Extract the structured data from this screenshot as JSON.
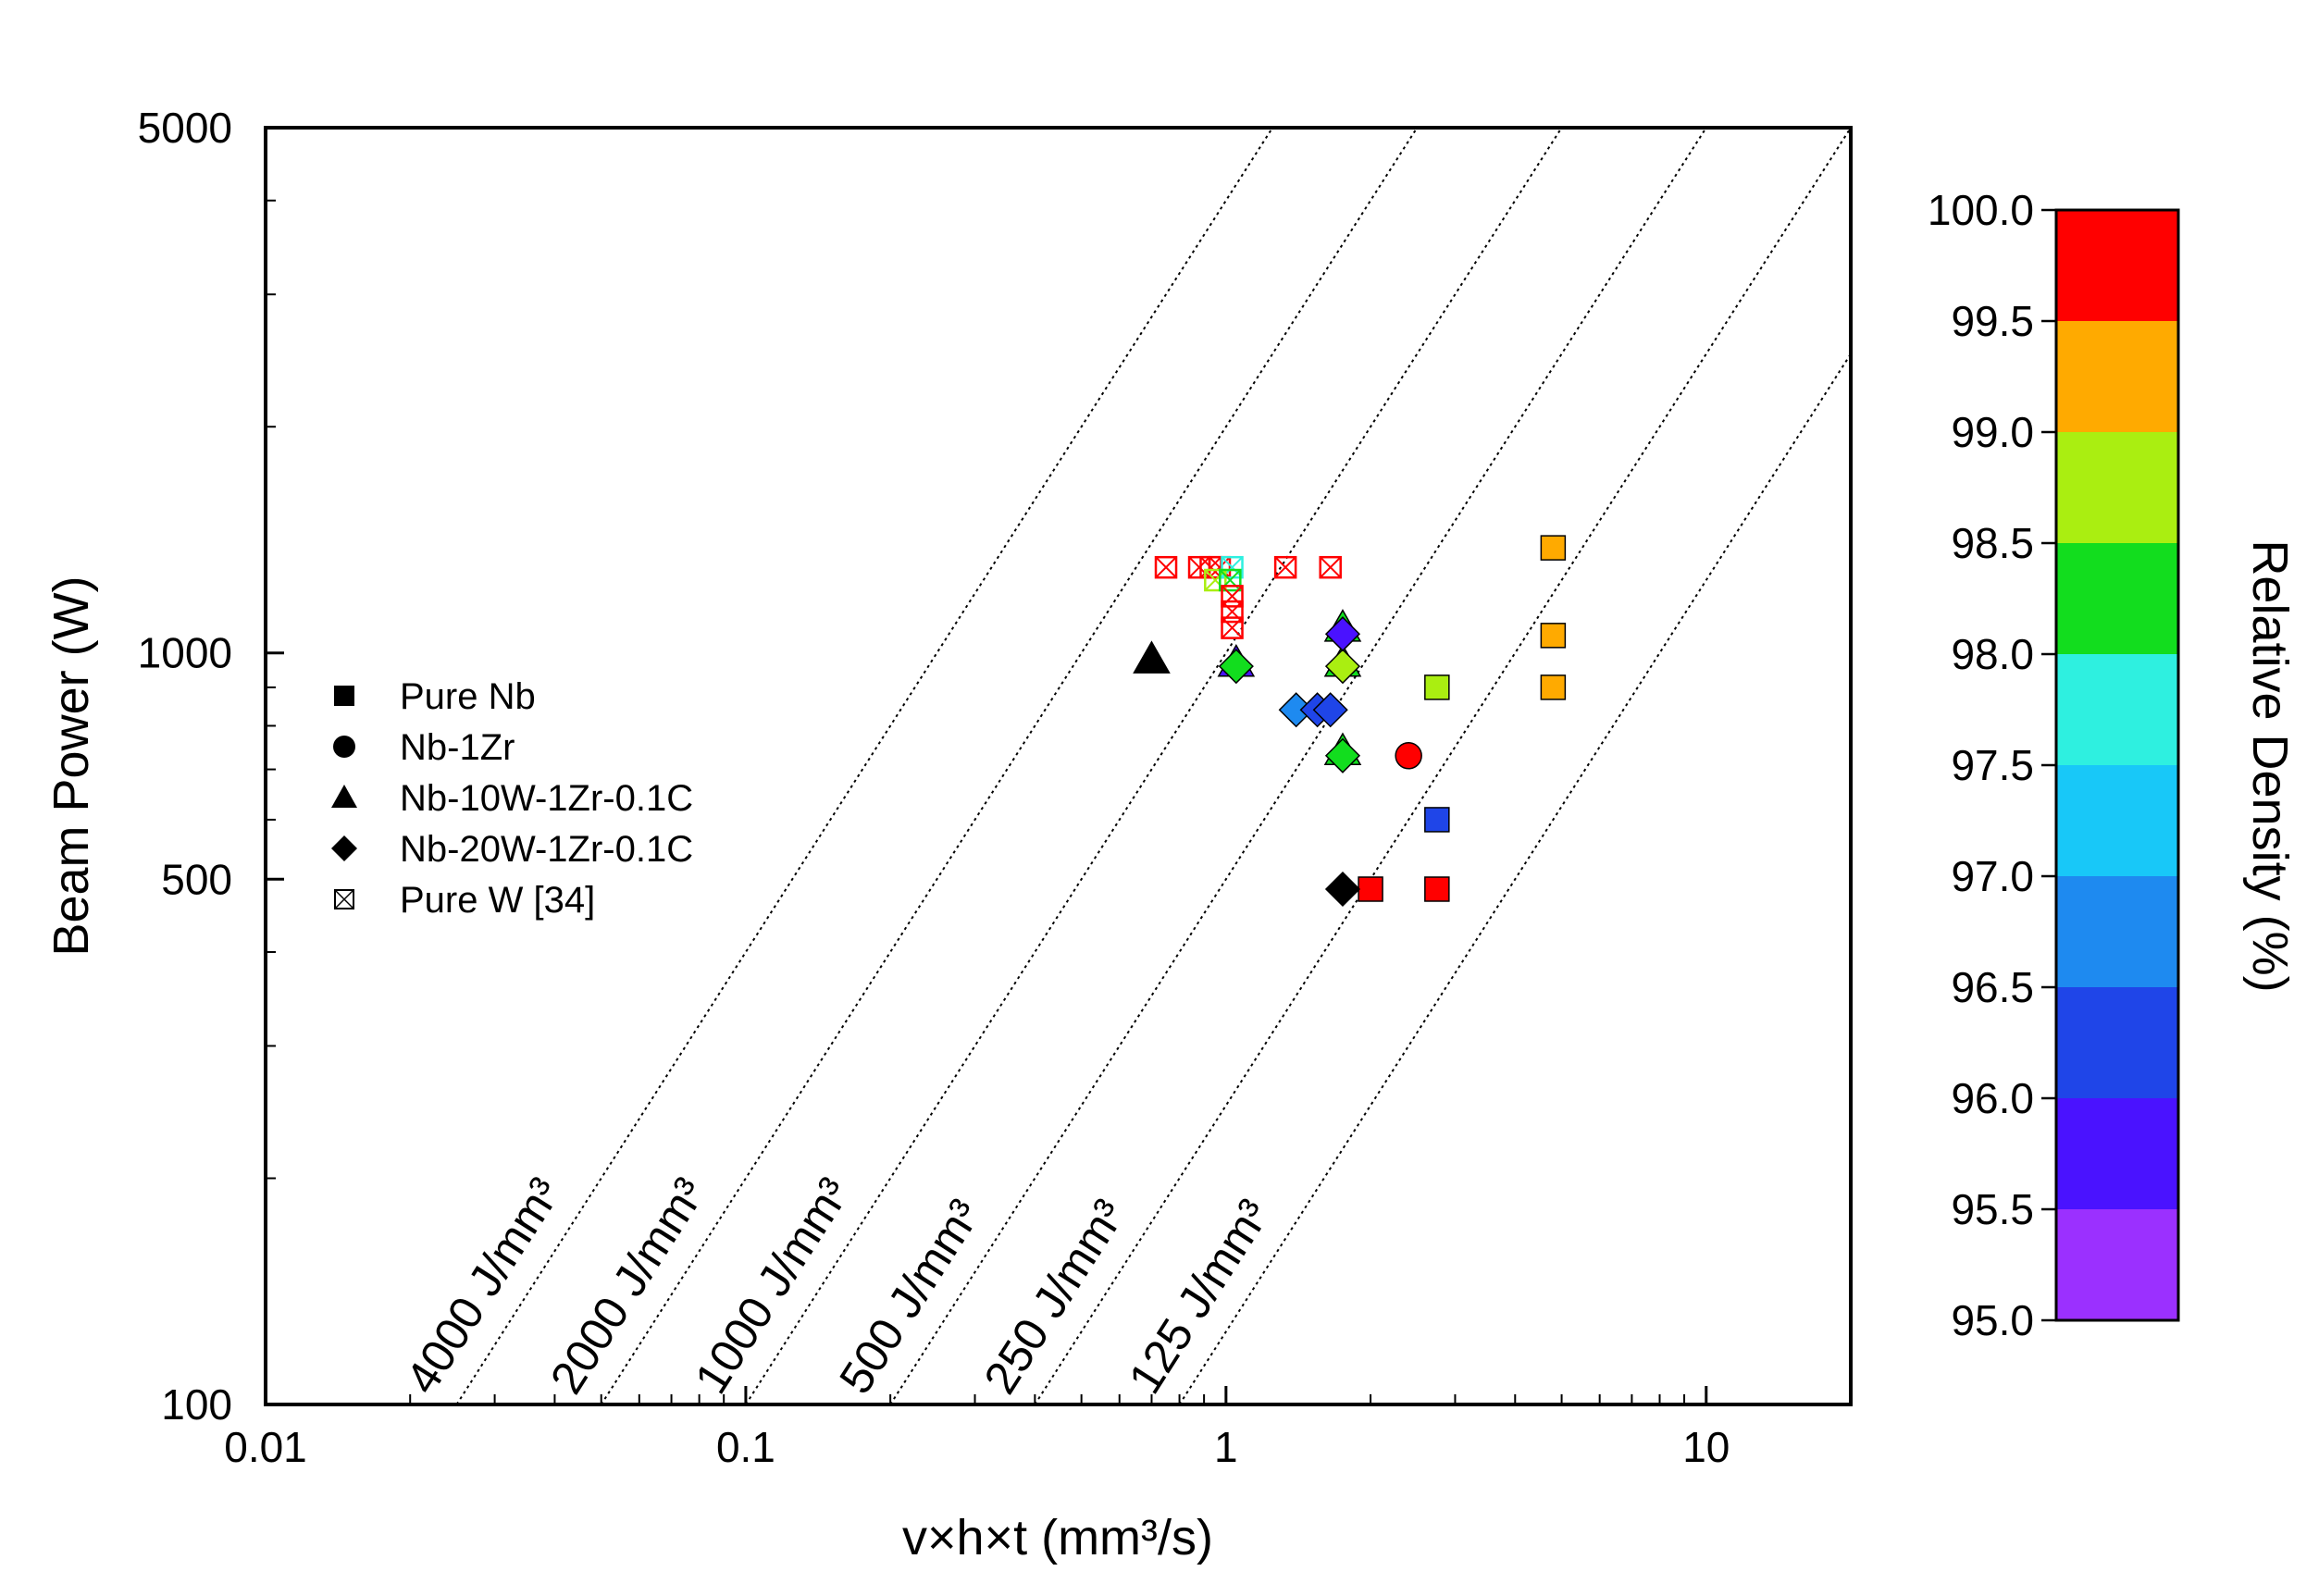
{
  "chart_data": {
    "type": "scatter",
    "xlabel": "v×h×t (mm³/s)",
    "ylabel": "Beam Power (W)",
    "x_scale": "log",
    "y_scale": "log",
    "xlim": [
      0.01,
      20
    ],
    "ylim": [
      100,
      5000
    ],
    "x_ticks": [
      {
        "value": 0.01,
        "label": "0.01"
      },
      {
        "value": 0.1,
        "label": "0.1"
      },
      {
        "value": 1,
        "label": "1"
      },
      {
        "value": 10,
        "label": "10"
      }
    ],
    "y_ticks": [
      {
        "value": 100,
        "label": "100"
      },
      {
        "value": 500,
        "label": "500"
      },
      {
        "value": 1000,
        "label": "1000"
      },
      {
        "value": 5000,
        "label": "5000"
      }
    ],
    "grid": false,
    "legend_position": "left-middle",
    "energy_density_lines": [
      {
        "value": 4000,
        "label": "4000 J/mm³"
      },
      {
        "value": 2000,
        "label": "2000 J/mm³"
      },
      {
        "value": 1000,
        "label": "1000 J/mm³"
      },
      {
        "value": 500,
        "label": "500 J/mm³"
      },
      {
        "value": 250,
        "label": "250 J/mm³"
      },
      {
        "value": 125,
        "label": "125 J/mm³"
      }
    ],
    "colorbar": {
      "title": "Relative Density (%)",
      "min": 95.0,
      "max": 100.0,
      "ticks": [
        "95.0",
        "95.5",
        "96.0",
        "96.5",
        "97.0",
        "97.5",
        "98.0",
        "98.5",
        "99.0",
        "99.5",
        "100.0"
      ],
      "colors": [
        "#9b30ff",
        "#4a12ff",
        "#1f45e8",
        "#1e8af0",
        "#18c8f8",
        "#2ef0e0",
        "#12dd1e",
        "#aaee11",
        "#ffaa00",
        "#ff5500",
        "#ff0000"
      ]
    },
    "series": [
      {
        "name": "Pure Nb",
        "marker": "square",
        "points": [
          {
            "x": 4.8,
            "y": 1380,
            "density": 99.2
          },
          {
            "x": 4.8,
            "y": 1055,
            "density": 99.2
          },
          {
            "x": 4.8,
            "y": 900,
            "density": 99.2
          },
          {
            "x": 2.75,
            "y": 900,
            "density": 98.7
          },
          {
            "x": 2.75,
            "y": 600,
            "density": 96.3
          },
          {
            "x": 2.75,
            "y": 485,
            "density": 99.8
          },
          {
            "x": 2.0,
            "y": 485,
            "density": 99.8
          }
        ]
      },
      {
        "name": "Nb-1Zr",
        "marker": "circle",
        "points": [
          {
            "x": 2.4,
            "y": 730,
            "density": 99.8
          }
        ]
      },
      {
        "name": "Nb-10W-1Zr-0.1C",
        "marker": "triangle",
        "points": [
          {
            "x": 0.7,
            "y": 980,
            "density": null
          },
          {
            "x": 1.75,
            "y": 1080,
            "density": 98.3
          },
          {
            "x": 1.75,
            "y": 970,
            "density": 98.3
          },
          {
            "x": 1.75,
            "y": 740,
            "density": 98.3
          },
          {
            "x": 1.05,
            "y": 970,
            "density": 95.6
          }
        ]
      },
      {
        "name": "Nb-20W-1Zr-0.1C",
        "marker": "diamond",
        "points": [
          {
            "x": 1.05,
            "y": 960,
            "density": 98.3
          },
          {
            "x": 1.75,
            "y": 960,
            "density": 98.8
          },
          {
            "x": 1.75,
            "y": 1060,
            "density": 95.8
          },
          {
            "x": 1.75,
            "y": 730,
            "density": 98.3
          },
          {
            "x": 1.4,
            "y": 840,
            "density": 96.7
          },
          {
            "x": 1.55,
            "y": 840,
            "density": 96.3
          },
          {
            "x": 1.65,
            "y": 840,
            "density": 96.2
          },
          {
            "x": 1.75,
            "y": 485,
            "density": null
          }
        ]
      },
      {
        "name": "Pure W [34]",
        "marker": "boxed-x",
        "points": [
          {
            "x": 0.75,
            "y": 1300,
            "density": 99.8
          },
          {
            "x": 0.88,
            "y": 1300,
            "density": 99.8
          },
          {
            "x": 0.93,
            "y": 1300,
            "density": 99.8
          },
          {
            "x": 0.97,
            "y": 1300,
            "density": 99.8
          },
          {
            "x": 1.03,
            "y": 1300,
            "density": 97.8
          },
          {
            "x": 1.33,
            "y": 1300,
            "density": 99.8
          },
          {
            "x": 1.65,
            "y": 1300,
            "density": 99.8
          },
          {
            "x": 0.95,
            "y": 1250,
            "density": 98.7
          },
          {
            "x": 1.02,
            "y": 1250,
            "density": 98.2
          },
          {
            "x": 1.03,
            "y": 1190,
            "density": 99.8
          },
          {
            "x": 1.03,
            "y": 1135,
            "density": 99.8
          },
          {
            "x": 1.03,
            "y": 1080,
            "density": 99.8
          }
        ]
      }
    ]
  }
}
